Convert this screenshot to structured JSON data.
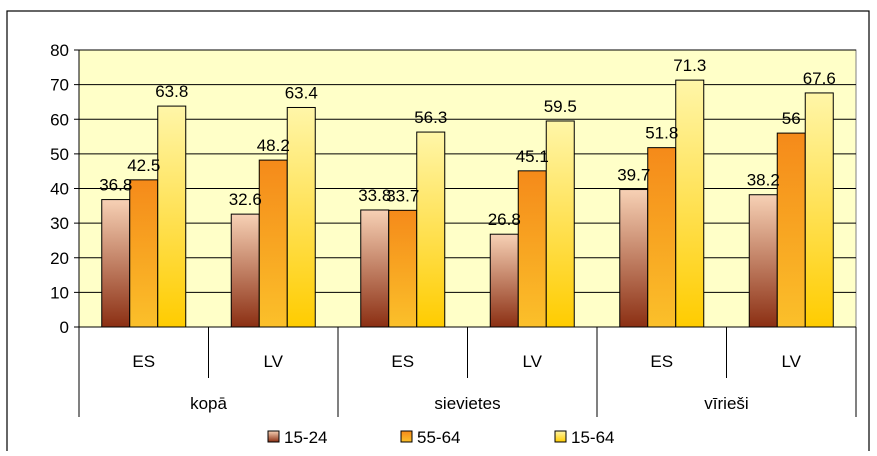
{
  "chart_data": {
    "type": "bar",
    "groups": [
      {
        "label": "kopā",
        "categories": [
          "ES",
          "LV"
        ]
      },
      {
        "label": "sievietes",
        "categories": [
          "ES",
          "LV"
        ]
      },
      {
        "label": "vīrieši",
        "categories": [
          "ES",
          "LV"
        ]
      }
    ],
    "categories": [
      "ES",
      "LV",
      "ES",
      "LV",
      "ES",
      "LV"
    ],
    "series": [
      {
        "name": "15-24",
        "values": [
          36.8,
          32.6,
          33.8,
          26.8,
          39.7,
          38.2
        ],
        "labels": [
          "36.8",
          "32.6",
          "33.8",
          "26.8",
          "39.7",
          "38.2"
        ],
        "color": "#e3a17a"
      },
      {
        "name": "55-64",
        "values": [
          42.5,
          48.2,
          33.7,
          45.1,
          51.8,
          56
        ],
        "labels": [
          "42.5",
          "48.2",
          "33.7",
          "45.1",
          "51.8",
          "56"
        ],
        "color": "#f59b1c"
      },
      {
        "name": "15-64",
        "values": [
          63.8,
          63.4,
          56.3,
          59.5,
          71.3,
          67.6
        ],
        "labels": [
          "63.8",
          "63.4",
          "56.3",
          "59.5",
          "71.3",
          "67.6"
        ],
        "color": "#ffe34d"
      }
    ],
    "ylim": [
      0,
      80
    ],
    "yticks": [
      "0",
      "10",
      "20",
      "30",
      "40",
      "50",
      "60",
      "70",
      "80"
    ],
    "grid": true,
    "legend": "bottom",
    "plot_background": "#ffffc8"
  }
}
